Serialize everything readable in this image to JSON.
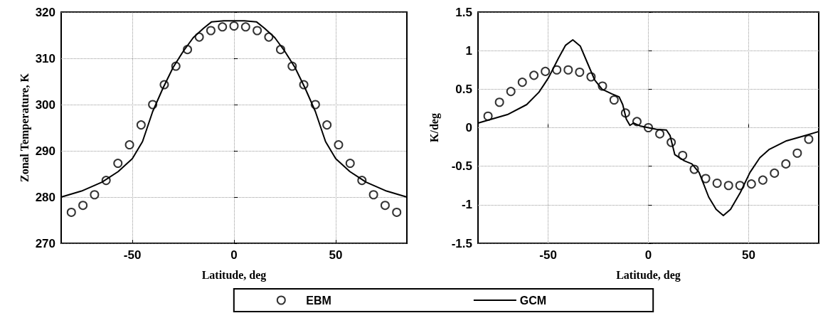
{
  "chart_data": [
    {
      "type": "line",
      "xlabel": "Latitude, deg",
      "ylabel": "Zonal Temperature, K",
      "xlim": [
        -85,
        85
      ],
      "xticks": [
        -50,
        0,
        50
      ],
      "ylim": [
        270,
        320
      ],
      "yticks": [
        270,
        280,
        290,
        300,
        310,
        320
      ],
      "grid": true,
      "legend": "bottom",
      "series": [
        {
          "name": "EBM",
          "type": "scatter",
          "marker": "circle",
          "color": "#000000",
          "x": [
            -80,
            -74.3,
            -68.6,
            -62.9,
            -57.1,
            -51.4,
            -45.7,
            -40,
            -34.3,
            -28.6,
            -22.9,
            -17.1,
            -11.4,
            -5.7,
            0,
            5.7,
            11.4,
            17.1,
            22.9,
            28.6,
            34.3,
            40,
            45.7,
            51.4,
            57.1,
            62.9,
            68.6,
            74.3,
            80
          ],
          "values": [
            276.7,
            278.2,
            280.5,
            283.6,
            287.3,
            291.3,
            295.6,
            300,
            304.3,
            308.3,
            311.9,
            314.6,
            316,
            316.8,
            317,
            316.8,
            316,
            314.6,
            311.9,
            308.3,
            304.3,
            300,
            295.6,
            291.3,
            287.3,
            283.6,
            280.5,
            278.2,
            276.7
          ]
        },
        {
          "name": "GCM",
          "marker": "none",
          "line_style": "solid",
          "color": "#000000",
          "x": [
            -85,
            -75,
            -65,
            -57,
            -50,
            -45,
            -40,
            -35,
            -30,
            -25,
            -20,
            -15,
            -11,
            -5,
            0,
            5,
            11,
            15,
            20,
            25,
            30,
            35,
            40,
            45,
            50,
            57,
            65,
            75,
            85
          ],
          "values": [
            280,
            281.3,
            283.2,
            285.5,
            288.3,
            292,
            298.5,
            303.5,
            308,
            311.5,
            314.5,
            316.5,
            317.9,
            318.1,
            318.1,
            318.1,
            317.9,
            316.5,
            314.5,
            311.5,
            308,
            303.5,
            298.5,
            292,
            288.3,
            285.5,
            283.2,
            281.3,
            280
          ]
        }
      ]
    },
    {
      "type": "line",
      "xlabel": "Latitude, deg",
      "ylabel": "K/deg",
      "xlim": [
        -85,
        85
      ],
      "xticks": [
        -50,
        0,
        50
      ],
      "ylim": [
        -1.5,
        1.5
      ],
      "yticks": [
        -1.5,
        -1,
        -0.5,
        0,
        0.5,
        1,
        1.5
      ],
      "grid": true,
      "legend": "bottom",
      "series": [
        {
          "name": "EBM",
          "type": "scatter",
          "marker": "circle",
          "color": "#000000",
          "x": [
            -80,
            -74.3,
            -68.6,
            -62.9,
            -57.1,
            -51.4,
            -45.7,
            -40,
            -34.3,
            -28.6,
            -22.9,
            -17.1,
            -11.4,
            -5.7,
            0,
            5.7,
            11.4,
            17.1,
            22.9,
            28.6,
            34.3,
            40,
            45.7,
            51.4,
            57.1,
            62.9,
            68.6,
            74.3,
            80
          ],
          "values": [
            0.15,
            0.33,
            0.47,
            0.59,
            0.68,
            0.73,
            0.75,
            0.75,
            0.72,
            0.66,
            0.54,
            0.36,
            0.19,
            0.08,
            0,
            -0.08,
            -0.19,
            -0.36,
            -0.54,
            -0.66,
            -0.72,
            -0.75,
            -0.75,
            -0.73,
            -0.68,
            -0.59,
            -0.47,
            -0.33,
            -0.15
          ]
        },
        {
          "name": "GCM",
          "marker": "none",
          "line_style": "solid",
          "color": "#000000",
          "x": [
            -85,
            -70.3,
            -60.7,
            -54.6,
            -49.8,
            -44.9,
            -41.3,
            -37.7,
            -34,
            -30.4,
            -26.8,
            -23.1,
            -18.3,
            -14.6,
            -12.8,
            -11,
            -9.2,
            -7.4,
            -3.8,
            0,
            4,
            9,
            10.8,
            13.2,
            18,
            21.7,
            25.3,
            30.1,
            33.8,
            37.4,
            41,
            45.9,
            50.7,
            55.6,
            60.4,
            68.9,
            78.6,
            85
          ],
          "values": [
            0.06,
            0.17,
            0.3,
            0.46,
            0.65,
            0.9,
            1.07,
            1.14,
            1.06,
            0.84,
            0.62,
            0.5,
            0.44,
            0.4,
            0.3,
            0.11,
            0.03,
            0.06,
            0.02,
            0,
            -0.02,
            -0.03,
            -0.1,
            -0.35,
            -0.43,
            -0.47,
            -0.58,
            -0.9,
            -1.06,
            -1.14,
            -1.06,
            -0.84,
            -0.58,
            -0.39,
            -0.28,
            -0.17,
            -0.1,
            -0.05
          ]
        }
      ]
    }
  ]
}
